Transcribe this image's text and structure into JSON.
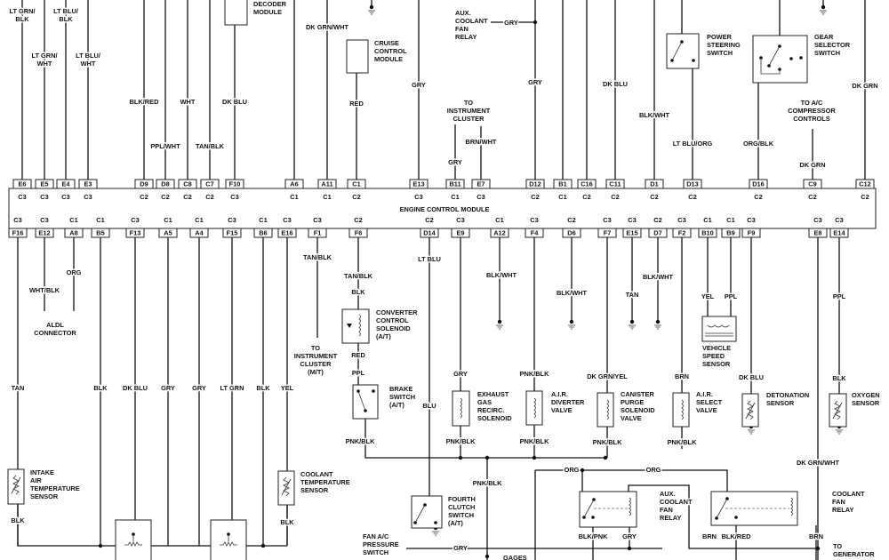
{
  "module": {
    "title": "ENGINE CONTROL MODULE"
  },
  "top_pins": [
    {
      "pin": "E6",
      "connector": "C3"
    },
    {
      "pin": "E5",
      "connector": "C3"
    },
    {
      "pin": "E4",
      "connector": "C3"
    },
    {
      "pin": "E3",
      "connector": "C3"
    },
    {
      "pin": "D9",
      "connector": "C2"
    },
    {
      "pin": "D8",
      "connector": "C2"
    },
    {
      "pin": "C8",
      "connector": "C2"
    },
    {
      "pin": "C7",
      "connector": "C2"
    },
    {
      "pin": "F10",
      "connector": "C3"
    },
    {
      "pin": "A6",
      "connector": "C1"
    },
    {
      "pin": "A11",
      "connector": "C1"
    },
    {
      "pin": "C1",
      "connector": "C2"
    },
    {
      "pin": "E13",
      "connector": "C3"
    },
    {
      "pin": "B11",
      "connector": "C1"
    },
    {
      "pin": "E7",
      "connector": "C3"
    },
    {
      "pin": "D12",
      "connector": "C2"
    },
    {
      "pin": "B1",
      "connector": "C1"
    },
    {
      "pin": "C16",
      "connector": "C2"
    },
    {
      "pin": "C11",
      "connector": "C2"
    },
    {
      "pin": "D1",
      "connector": "C2"
    },
    {
      "pin": "D13",
      "connector": "C2"
    },
    {
      "pin": "D16",
      "connector": "C2"
    },
    {
      "pin": "C9",
      "connector": "C2"
    },
    {
      "pin": "C12",
      "connector": "C2"
    }
  ],
  "bottom_pins": [
    {
      "pin": "F16",
      "connector": "C3"
    },
    {
      "pin": "E12",
      "connector": "C3"
    },
    {
      "pin": "A8",
      "connector": "C1"
    },
    {
      "pin": "B5",
      "connector": "C1"
    },
    {
      "pin": "F13",
      "connector": "C3"
    },
    {
      "pin": "A5",
      "connector": "C1"
    },
    {
      "pin": "A4",
      "connector": "C1"
    },
    {
      "pin": "F15",
      "connector": "C3"
    },
    {
      "pin": "B6",
      "connector": "C1"
    },
    {
      "pin": "E16",
      "connector": "C3"
    },
    {
      "pin": "F1",
      "connector": "C3"
    },
    {
      "pin": "F6",
      "connector": "C2"
    },
    {
      "pin": "D14",
      "connector": "C2"
    },
    {
      "pin": "E9",
      "connector": "C3"
    },
    {
      "pin": "A12",
      "connector": "C1"
    },
    {
      "pin": "F4",
      "connector": "C3"
    },
    {
      "pin": "D6",
      "connector": "C2"
    },
    {
      "pin": "F7",
      "connector": "C3"
    },
    {
      "pin": "E15",
      "connector": "C3"
    },
    {
      "pin": "D7",
      "connector": "C2"
    },
    {
      "pin": "F2",
      "connector": "C3"
    },
    {
      "pin": "B10",
      "connector": "C1"
    },
    {
      "pin": "B9",
      "connector": "C1"
    },
    {
      "pin": "F9",
      "connector": "C3"
    },
    {
      "pin": "E8",
      "connector": "C3"
    },
    {
      "pin": "E14",
      "connector": "C3"
    }
  ],
  "labels": [
    [
      "LT GRN/",
      "BLK"
    ],
    [
      "LT GRN/",
      "WHT"
    ],
    [
      "LT BLU/",
      "BLK"
    ],
    [
      "LT BLU/",
      "WHT"
    ],
    [
      "BLK/RED"
    ],
    [
      "PPL/WHT"
    ],
    [
      "WHT"
    ],
    [
      "TAN/BLK"
    ],
    [
      "DK BLU"
    ],
    [
      "DECODER",
      "MODULE"
    ],
    [
      "DK GRN/WHT"
    ],
    [
      "CRUISE",
      "CONTROL",
      "MODULE"
    ],
    [
      "RED"
    ],
    [
      "GRY"
    ],
    [
      "TO",
      "INSTRUMENT",
      "CLUSTER"
    ],
    [
      "BRN/WHT"
    ],
    [
      "GRY"
    ],
    [
      "AUX.",
      "COOLANT",
      "FAN",
      "RELAY"
    ],
    [
      "GRY"
    ],
    [
      "GRY"
    ],
    [
      "DK BLU"
    ],
    [
      "BLK/WHT"
    ],
    [
      "POWER",
      "STEERING",
      "SWITCH"
    ],
    [
      "LT BLU/ORG"
    ],
    [
      "GEAR",
      "SELECTOR",
      "SWITCH"
    ],
    [
      "ORG/BLK"
    ],
    [
      "TO A/C",
      "COMPRESSOR",
      "CONTROLS"
    ],
    [
      "DK GRN"
    ],
    [
      "DK GRN"
    ],
    [
      "ENGINE CONTROL MODULE"
    ],
    [
      "WHT/BLK"
    ],
    [
      "ORG"
    ],
    [
      "ALDL",
      "CONNECTOR"
    ],
    [
      "TAN"
    ],
    [
      "BLK"
    ],
    [
      "DK BLU"
    ],
    [
      "GRY"
    ],
    [
      "GRY"
    ],
    [
      "LT GRN"
    ],
    [
      "BLK"
    ],
    [
      "YEL"
    ],
    [
      "INTAKE",
      "AIR",
      "TEMPERATURE",
      "SENSOR"
    ],
    [
      "BLK"
    ],
    [
      "COOLANT",
      "TEMPERATURE",
      "SENSOR"
    ],
    [
      "BLK"
    ],
    [
      "TAN/BLK"
    ],
    [
      "TO",
      "INSTRUMENT",
      "CLUSTER",
      "(M/T)"
    ],
    [
      "TAN/BLK"
    ],
    [
      "BLK"
    ],
    [
      "CONVERTER",
      "CONTROL",
      "SOLENOID",
      "(A/T)"
    ],
    [
      "RED"
    ],
    [
      "PPL"
    ],
    [
      "BRAKE",
      "SWITCH",
      "(A/T)"
    ],
    [
      "PNK/BLK"
    ],
    [
      "LT BLU"
    ],
    [
      "BLU"
    ],
    [
      "FOURTH",
      "CLUTCH",
      "SWITCH",
      "(A/T)"
    ],
    [
      "GRY"
    ],
    [
      "EXHAUST",
      "GAS",
      "RECIRC.",
      "SOLENOID"
    ],
    [
      "PNK/BLK"
    ],
    [
      "BLK/WHT"
    ],
    [
      "PNK/BLK"
    ],
    [
      "A.I.R.",
      "DIVERTER",
      "VALVE"
    ],
    [
      "PNK/BLK"
    ],
    [
      "BLK/WHT"
    ],
    [
      "DK GRN/YEL"
    ],
    [
      "CANISTER",
      "PURGE",
      "SOLENOID",
      "VALVE"
    ],
    [
      "PNK/BLK"
    ],
    [
      "TAN"
    ],
    [
      "BLK/WHT"
    ],
    [
      "BRN"
    ],
    [
      "A.I.R.",
      "SELECT",
      "VALVE"
    ],
    [
      "PNK/BLK"
    ],
    [
      "YEL"
    ],
    [
      "PPL"
    ],
    [
      "VEHICLE",
      "SPEED",
      "SENSOR"
    ],
    [
      "DK BLU"
    ],
    [
      "DETONATION",
      "SENSOR"
    ],
    [
      "PPL"
    ],
    [
      "BLK"
    ],
    [
      "OXYGEN",
      "SENSOR"
    ],
    [
      "DK GRN/WHT"
    ],
    [
      "PNK/BLK"
    ],
    [
      "ORG"
    ],
    [
      "ORG"
    ],
    [
      "AUX.",
      "COOLANT",
      "FAN",
      "RELAY"
    ],
    [
      "COOLANT",
      "FAN",
      "RELAY"
    ],
    [
      "BLK/PNK"
    ],
    [
      "GRY"
    ],
    [
      "BRN"
    ],
    [
      "BLK/RED"
    ],
    [
      "BRN"
    ],
    [
      "TO",
      "GENERATOR"
    ],
    [
      "FAN A/C",
      "PRESSURE",
      "SWITCH"
    ],
    [
      "GRY"
    ],
    [
      "GAGES"
    ]
  ]
}
